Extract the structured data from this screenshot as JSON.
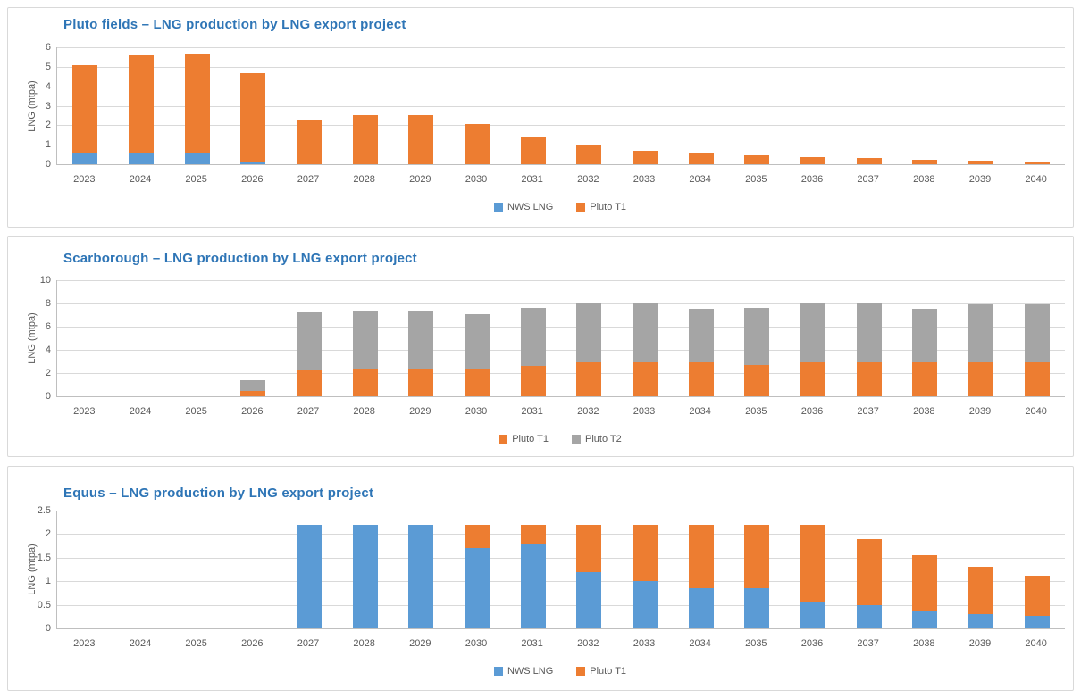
{
  "theme": {
    "series_blue": "#5B9BD5",
    "series_orange": "#ED7D31",
    "series_gray": "#A5A5A5",
    "title_color": "#2E75B6",
    "axis_text_color": "#595959",
    "gridline_color": "#D9D9D9",
    "panel_border_color": "#D9D9D9",
    "background": "#FFFFFF"
  },
  "chart_data": [
    {
      "type": "bar",
      "stacked": true,
      "title": "Pluto fields – LNG production by LNG export project",
      "xlabel": "",
      "ylabel": "LNG (mtpa)",
      "ylim": [
        0,
        6
      ],
      "yticks": [
        "0",
        "1",
        "2",
        "3",
        "4",
        "5",
        "6"
      ],
      "grid": true,
      "legend_position": "bottom",
      "categories": [
        "2023",
        "2024",
        "2025",
        "2026",
        "2027",
        "2028",
        "2029",
        "2030",
        "2031",
        "2032",
        "2033",
        "2034",
        "2035",
        "2036",
        "2037",
        "2038",
        "2039",
        "2040"
      ],
      "series": [
        {
          "name": "NWS LNG",
          "color": "#5B9BD5",
          "values": [
            0.6,
            0.6,
            0.6,
            0.15,
            0,
            0,
            0,
            0,
            0,
            0,
            0,
            0,
            0,
            0,
            0,
            0,
            0,
            0
          ]
        },
        {
          "name": "Pluto T1",
          "color": "#ED7D31",
          "values": [
            4.5,
            5.0,
            5.05,
            4.5,
            2.25,
            2.5,
            2.5,
            2.05,
            1.4,
            0.95,
            0.7,
            0.6,
            0.45,
            0.35,
            0.3,
            0.22,
            0.18,
            0.12
          ]
        }
      ]
    },
    {
      "type": "bar",
      "stacked": true,
      "title": "Scarborough – LNG production by LNG export project",
      "xlabel": "",
      "ylabel": "LNG (mtpa)",
      "ylim": [
        0,
        10
      ],
      "yticks": [
        "0",
        "2",
        "4",
        "6",
        "8",
        "10"
      ],
      "grid": true,
      "legend_position": "bottom",
      "categories": [
        "2023",
        "2024",
        "2025",
        "2026",
        "2027",
        "2028",
        "2029",
        "2030",
        "2031",
        "2032",
        "2033",
        "2034",
        "2035",
        "2036",
        "2037",
        "2038",
        "2039",
        "2040"
      ],
      "series": [
        {
          "name": "Pluto T1",
          "color": "#ED7D31",
          "values": [
            0,
            0,
            0,
            0.45,
            2.2,
            2.4,
            2.4,
            2.4,
            2.6,
            2.9,
            2.9,
            2.9,
            2.7,
            2.9,
            2.9,
            2.9,
            2.9,
            2.9
          ]
        },
        {
          "name": "Pluto T2",
          "color": "#A5A5A5",
          "values": [
            0,
            0,
            0,
            0.95,
            5.0,
            5.0,
            5.0,
            4.7,
            5.0,
            5.1,
            5.1,
            4.65,
            4.9,
            5.1,
            5.1,
            4.65,
            5.05,
            5.05
          ]
        }
      ]
    },
    {
      "type": "bar",
      "stacked": true,
      "title": "Equus – LNG production by LNG export project",
      "xlabel": "",
      "ylabel": "LNG (mtpa)",
      "ylim": [
        0,
        2.5
      ],
      "yticks": [
        "0",
        "0.5",
        "1",
        "1.5",
        "2",
        "2.5"
      ],
      "grid": true,
      "legend_position": "bottom",
      "categories": [
        "2023",
        "2024",
        "2025",
        "2026",
        "2027",
        "2028",
        "2029",
        "2030",
        "2031",
        "2032",
        "2033",
        "2034",
        "2035",
        "2036",
        "2037",
        "2038",
        "2039",
        "2040"
      ],
      "series": [
        {
          "name": "NWS LNG",
          "color": "#5B9BD5",
          "values": [
            0,
            0,
            0,
            0,
            2.2,
            2.2,
            2.2,
            1.7,
            1.8,
            1.2,
            1.0,
            0.85,
            0.85,
            0.55,
            0.5,
            0.38,
            0.3,
            0.27
          ]
        },
        {
          "name": "Pluto T1",
          "color": "#ED7D31",
          "values": [
            0,
            0,
            0,
            0,
            0,
            0,
            0,
            0.5,
            0.4,
            1.0,
            1.2,
            1.35,
            1.35,
            1.65,
            1.4,
            1.17,
            1.0,
            0.85
          ]
        }
      ]
    }
  ]
}
